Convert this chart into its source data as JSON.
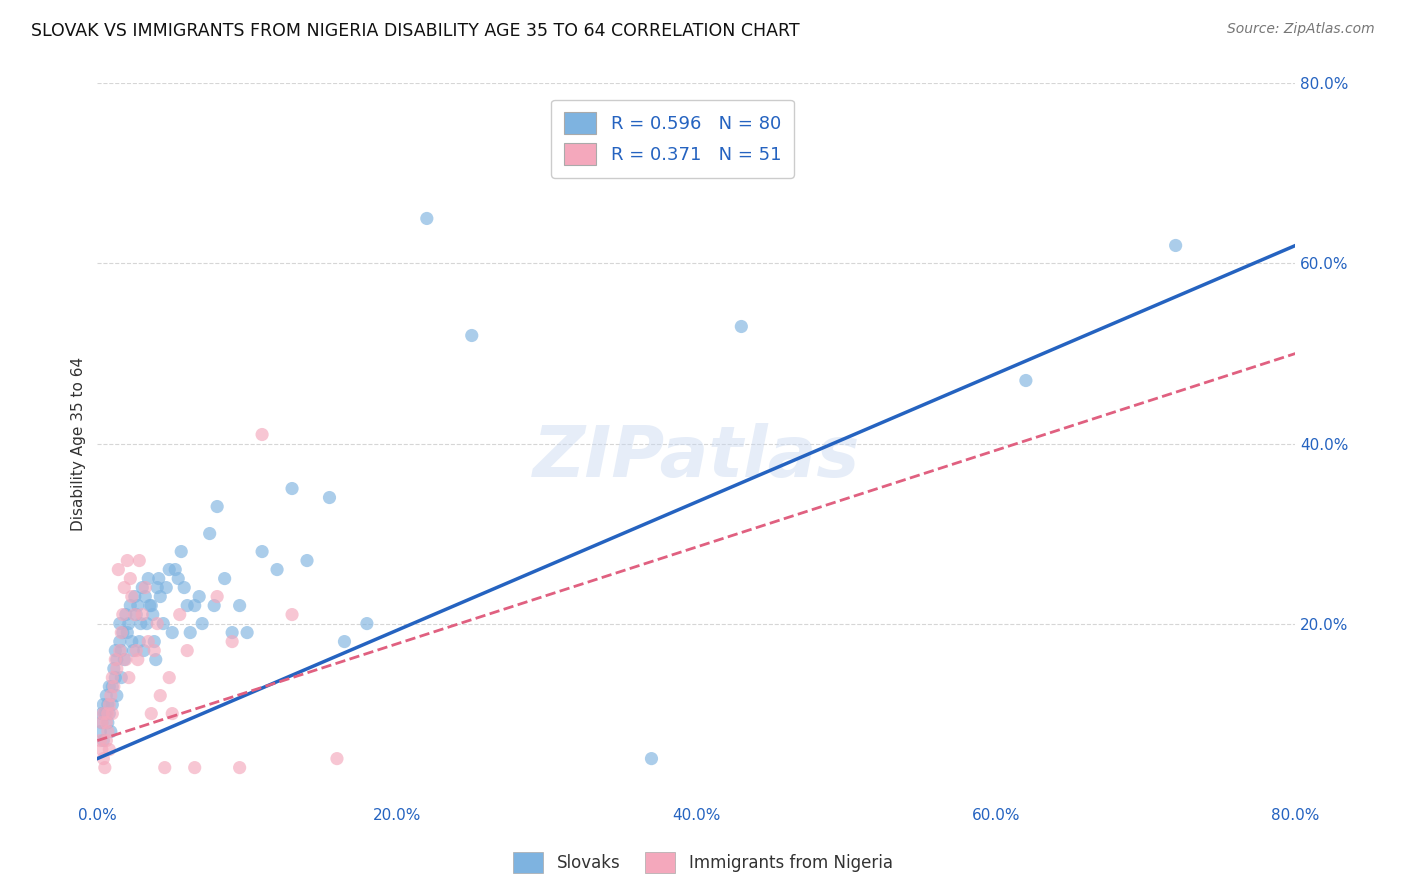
{
  "title": "SLOVAK VS IMMIGRANTS FROM NIGERIA DISABILITY AGE 35 TO 64 CORRELATION CHART",
  "source": "Source: ZipAtlas.com",
  "ylabel": "Disability Age 35 to 64",
  "xlim": [
    0.0,
    0.8
  ],
  "ylim": [
    0.0,
    0.8
  ],
  "xtick_labels": [
    "0.0%",
    "",
    "20.0%",
    "",
    "40.0%",
    "",
    "60.0%",
    "",
    "80.0%"
  ],
  "xtick_vals": [
    0.0,
    0.1,
    0.2,
    0.3,
    0.4,
    0.5,
    0.6,
    0.7,
    0.8
  ],
  "ytick_labels": [
    "20.0%",
    "40.0%",
    "60.0%",
    "80.0%"
  ],
  "ytick_vals": [
    0.2,
    0.4,
    0.6,
    0.8
  ],
  "legend_bottom": [
    "Slovaks",
    "Immigrants from Nigeria"
  ],
  "watermark": "ZIPatlas",
  "blue_color": "#7eb3e0",
  "pink_color": "#f4a8bc",
  "blue_line_color": "#2563c0",
  "pink_line_color": "#e06080",
  "tick_color": "#2563c0",
  "scatter_alpha": 0.65,
  "scatter_size": 90,
  "blue_scatter": [
    [
      0.002,
      0.08
    ],
    [
      0.003,
      0.1
    ],
    [
      0.003,
      0.09
    ],
    [
      0.004,
      0.11
    ],
    [
      0.004,
      0.07
    ],
    [
      0.005,
      0.1
    ],
    [
      0.006,
      0.12
    ],
    [
      0.006,
      0.1
    ],
    [
      0.007,
      0.11
    ],
    [
      0.007,
      0.09
    ],
    [
      0.008,
      0.13
    ],
    [
      0.008,
      0.1
    ],
    [
      0.009,
      0.08
    ],
    [
      0.01,
      0.13
    ],
    [
      0.01,
      0.11
    ],
    [
      0.011,
      0.15
    ],
    [
      0.012,
      0.14
    ],
    [
      0.012,
      0.17
    ],
    [
      0.013,
      0.16
    ],
    [
      0.013,
      0.12
    ],
    [
      0.015,
      0.18
    ],
    [
      0.015,
      0.2
    ],
    [
      0.016,
      0.14
    ],
    [
      0.016,
      0.17
    ],
    [
      0.017,
      0.19
    ],
    [
      0.018,
      0.16
    ],
    [
      0.019,
      0.21
    ],
    [
      0.02,
      0.19
    ],
    [
      0.021,
      0.2
    ],
    [
      0.022,
      0.22
    ],
    [
      0.023,
      0.18
    ],
    [
      0.024,
      0.17
    ],
    [
      0.025,
      0.23
    ],
    [
      0.026,
      0.21
    ],
    [
      0.027,
      0.22
    ],
    [
      0.028,
      0.18
    ],
    [
      0.029,
      0.2
    ],
    [
      0.03,
      0.24
    ],
    [
      0.031,
      0.17
    ],
    [
      0.032,
      0.23
    ],
    [
      0.033,
      0.2
    ],
    [
      0.034,
      0.25
    ],
    [
      0.035,
      0.22
    ],
    [
      0.036,
      0.22
    ],
    [
      0.037,
      0.21
    ],
    [
      0.038,
      0.18
    ],
    [
      0.039,
      0.16
    ],
    [
      0.04,
      0.24
    ],
    [
      0.041,
      0.25
    ],
    [
      0.042,
      0.23
    ],
    [
      0.044,
      0.2
    ],
    [
      0.046,
      0.24
    ],
    [
      0.048,
      0.26
    ],
    [
      0.05,
      0.19
    ],
    [
      0.052,
      0.26
    ],
    [
      0.054,
      0.25
    ],
    [
      0.056,
      0.28
    ],
    [
      0.058,
      0.24
    ],
    [
      0.06,
      0.22
    ],
    [
      0.062,
      0.19
    ],
    [
      0.065,
      0.22
    ],
    [
      0.068,
      0.23
    ],
    [
      0.07,
      0.2
    ],
    [
      0.075,
      0.3
    ],
    [
      0.078,
      0.22
    ],
    [
      0.08,
      0.33
    ],
    [
      0.085,
      0.25
    ],
    [
      0.09,
      0.19
    ],
    [
      0.095,
      0.22
    ],
    [
      0.1,
      0.19
    ],
    [
      0.11,
      0.28
    ],
    [
      0.12,
      0.26
    ],
    [
      0.13,
      0.35
    ],
    [
      0.14,
      0.27
    ],
    [
      0.155,
      0.34
    ],
    [
      0.165,
      0.18
    ],
    [
      0.18,
      0.2
    ],
    [
      0.22,
      0.65
    ],
    [
      0.25,
      0.52
    ],
    [
      0.37,
      0.05
    ],
    [
      0.43,
      0.53
    ],
    [
      0.62,
      0.47
    ],
    [
      0.72,
      0.62
    ]
  ],
  "pink_scatter": [
    [
      0.002,
      0.07
    ],
    [
      0.003,
      0.06
    ],
    [
      0.003,
      0.09
    ],
    [
      0.004,
      0.05
    ],
    [
      0.004,
      0.1
    ],
    [
      0.005,
      0.04
    ],
    [
      0.006,
      0.09
    ],
    [
      0.006,
      0.07
    ],
    [
      0.007,
      0.1
    ],
    [
      0.007,
      0.08
    ],
    [
      0.008,
      0.06
    ],
    [
      0.008,
      0.11
    ],
    [
      0.009,
      0.12
    ],
    [
      0.01,
      0.1
    ],
    [
      0.01,
      0.14
    ],
    [
      0.011,
      0.13
    ],
    [
      0.012,
      0.16
    ],
    [
      0.013,
      0.15
    ],
    [
      0.014,
      0.26
    ],
    [
      0.015,
      0.17
    ],
    [
      0.016,
      0.19
    ],
    [
      0.017,
      0.21
    ],
    [
      0.018,
      0.24
    ],
    [
      0.019,
      0.16
    ],
    [
      0.02,
      0.27
    ],
    [
      0.021,
      0.14
    ],
    [
      0.022,
      0.25
    ],
    [
      0.023,
      0.23
    ],
    [
      0.025,
      0.21
    ],
    [
      0.026,
      0.17
    ],
    [
      0.027,
      0.16
    ],
    [
      0.028,
      0.27
    ],
    [
      0.03,
      0.21
    ],
    [
      0.032,
      0.24
    ],
    [
      0.034,
      0.18
    ],
    [
      0.036,
      0.1
    ],
    [
      0.038,
      0.17
    ],
    [
      0.04,
      0.2
    ],
    [
      0.042,
      0.12
    ],
    [
      0.045,
      0.04
    ],
    [
      0.048,
      0.14
    ],
    [
      0.05,
      0.1
    ],
    [
      0.055,
      0.21
    ],
    [
      0.06,
      0.17
    ],
    [
      0.065,
      0.04
    ],
    [
      0.08,
      0.23
    ],
    [
      0.09,
      0.18
    ],
    [
      0.095,
      0.04
    ],
    [
      0.11,
      0.41
    ],
    [
      0.13,
      0.21
    ],
    [
      0.16,
      0.05
    ]
  ],
  "blue_line": [
    [
      0.0,
      0.05
    ],
    [
      0.8,
      0.62
    ]
  ],
  "pink_line": [
    [
      0.0,
      0.07
    ],
    [
      0.8,
      0.5
    ]
  ]
}
